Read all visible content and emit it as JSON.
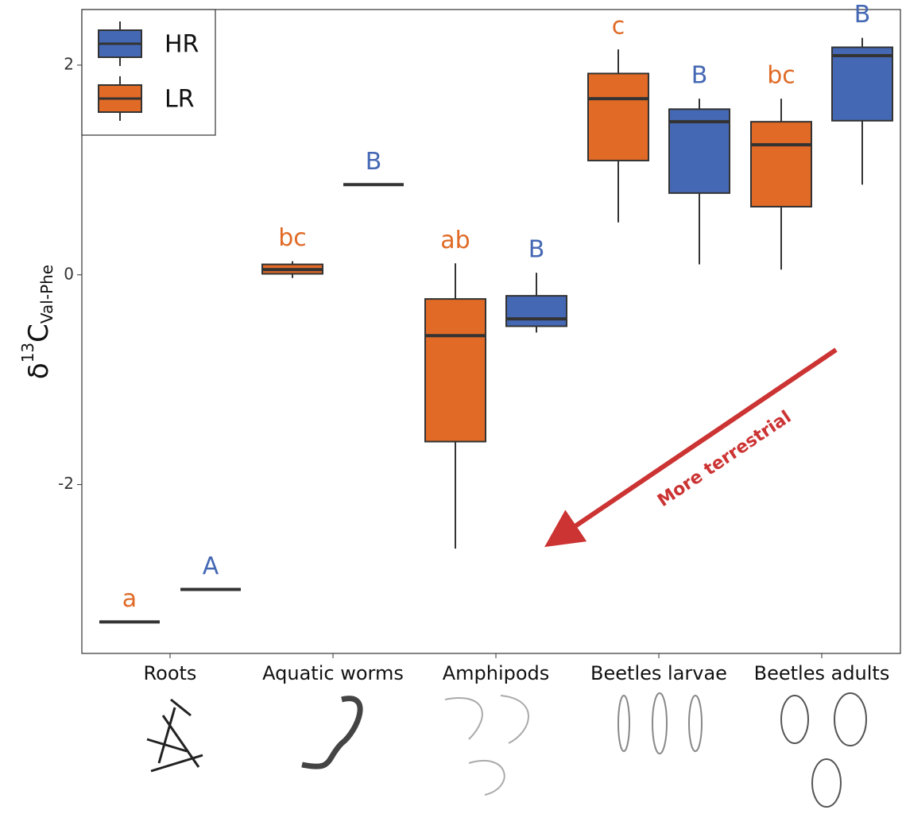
{
  "chart_data": {
    "type": "box",
    "y_label": {
      "base": "δ",
      "sup": "13",
      "main": "C",
      "sub": "Val-Phe"
    },
    "categories": [
      "Roots",
      "Aquatic worms",
      "Amphipods",
      "Beetles larvae",
      "Beetles adults"
    ],
    "series": [
      {
        "name": "HR",
        "color": "#4568b4",
        "min": [
          -3.0,
          0.86,
          -0.55,
          0.1,
          0.86
        ],
        "q1": [
          -3.0,
          0.86,
          -0.49,
          0.78,
          1.47
        ],
        "median": [
          -3.0,
          0.86,
          -0.42,
          1.46,
          2.09
        ],
        "q3": [
          -3.0,
          0.86,
          -0.2,
          1.58,
          2.17
        ],
        "max": [
          -3.0,
          0.86,
          0.02,
          1.68,
          2.26
        ],
        "letters": [
          "A",
          "B",
          "B",
          "B",
          "B"
        ]
      },
      {
        "name": "LR",
        "color": "#e06a26",
        "min": [
          -3.31,
          -0.03,
          -2.61,
          0.5,
          0.05
        ],
        "q1": [
          -3.31,
          0.01,
          -1.59,
          1.09,
          0.65
        ],
        "median": [
          -3.31,
          0.05,
          -0.58,
          1.68,
          1.24
        ],
        "q3": [
          -3.31,
          0.1,
          -0.23,
          1.92,
          1.46
        ],
        "max": [
          -3.31,
          0.13,
          0.11,
          2.15,
          1.68
        ],
        "letters": [
          "a",
          "bc",
          "ab",
          "c",
          "bc"
        ]
      }
    ],
    "ylim": [
      -3.61,
      2.53
    ],
    "yticks": [
      -2,
      0,
      2
    ],
    "annotation": "More terrestrial",
    "annotation_color": "#cc3333",
    "legend": "top-left"
  }
}
